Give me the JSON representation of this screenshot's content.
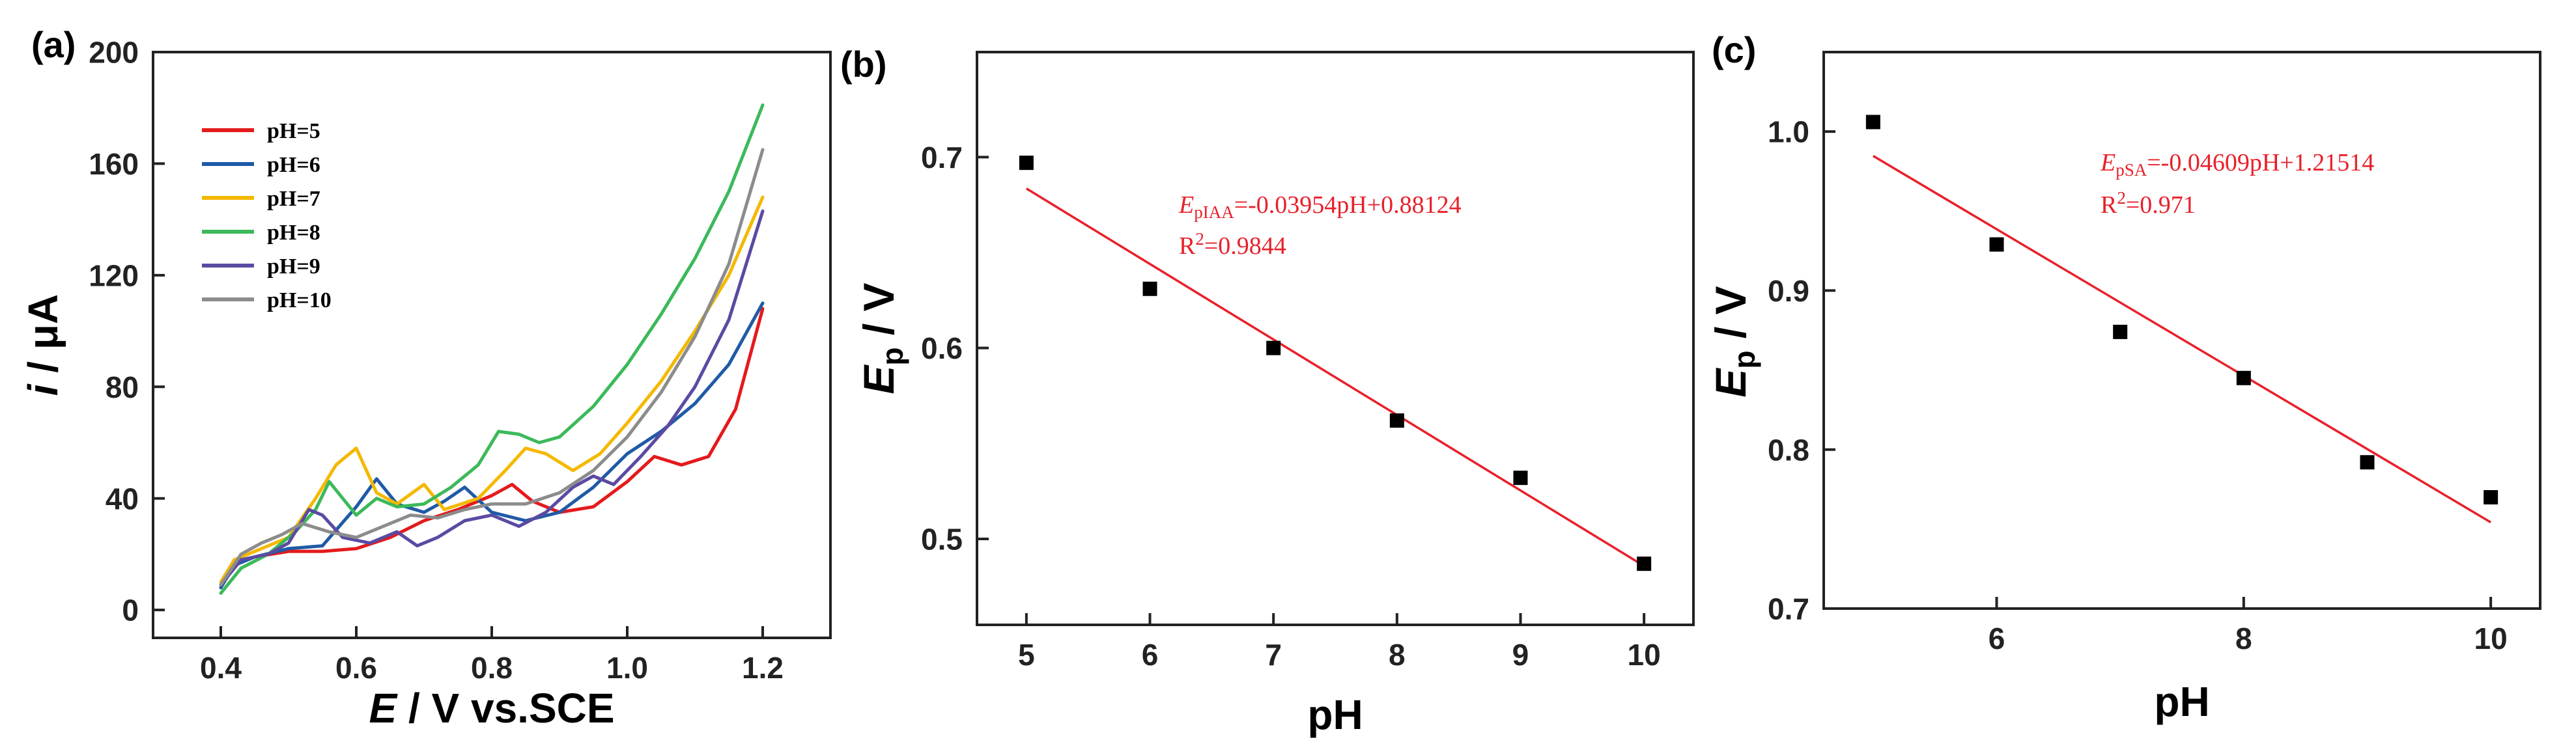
{
  "chart_data": [
    {
      "panel_label": "(a)",
      "type": "line",
      "xlabel_italic": "E",
      "xlabel_rest": " / V vs.SCE",
      "ylabel_italic": "i",
      "ylabel_rest": " / μA",
      "xlim": [
        0.3,
        1.3
      ],
      "ylim": [
        -10,
        200
      ],
      "xticks": [
        0.4,
        0.6,
        0.8,
        1.0,
        1.2
      ],
      "xtick_labels": [
        "0.4",
        "0.6",
        "0.8",
        "1.0",
        "1.2"
      ],
      "yticks": [
        0,
        40,
        80,
        120,
        160,
        200
      ],
      "ytick_labels": [
        "0",
        "40",
        "80",
        "120",
        "160",
        "200"
      ],
      "legend_position": "top-left",
      "series": [
        {
          "name": "pH=5",
          "color": "#e41a1c",
          "points": [
            [
              0.4,
              8
            ],
            [
              0.42,
              17
            ],
            [
              0.45,
              19
            ],
            [
              0.5,
              21
            ],
            [
              0.55,
              21
            ],
            [
              0.6,
              22
            ],
            [
              0.65,
              26
            ],
            [
              0.7,
              32
            ],
            [
              0.75,
              36
            ],
            [
              0.8,
              41
            ],
            [
              0.83,
              45
            ],
            [
              0.86,
              39
            ],
            [
              0.9,
              35
            ],
            [
              0.95,
              37
            ],
            [
              1.0,
              46
            ],
            [
              1.04,
              55
            ],
            [
              1.08,
              52
            ],
            [
              1.12,
              55
            ],
            [
              1.16,
              72
            ],
            [
              1.2,
              108
            ]
          ]
        },
        {
          "name": "pH=6",
          "color": "#1f5aa6",
          "points": [
            [
              0.4,
              8
            ],
            [
              0.42,
              16
            ],
            [
              0.45,
              19
            ],
            [
              0.5,
              22
            ],
            [
              0.55,
              23
            ],
            [
              0.6,
              37
            ],
            [
              0.63,
              47
            ],
            [
              0.66,
              38
            ],
            [
              0.7,
              35
            ],
            [
              0.73,
              39
            ],
            [
              0.76,
              44
            ],
            [
              0.8,
              35
            ],
            [
              0.85,
              32
            ],
            [
              0.9,
              35
            ],
            [
              0.95,
              44
            ],
            [
              1.0,
              56
            ],
            [
              1.05,
              64
            ],
            [
              1.1,
              74
            ],
            [
              1.15,
              88
            ],
            [
              1.2,
              110
            ]
          ]
        },
        {
          "name": "pH=7",
          "color": "#f5b800",
          "points": [
            [
              0.4,
              10
            ],
            [
              0.42,
              18
            ],
            [
              0.46,
              22
            ],
            [
              0.5,
              26
            ],
            [
              0.54,
              40
            ],
            [
              0.57,
              52
            ],
            [
              0.6,
              58
            ],
            [
              0.63,
              42
            ],
            [
              0.66,
              38
            ],
            [
              0.7,
              45
            ],
            [
              0.73,
              36
            ],
            [
              0.78,
              40
            ],
            [
              0.82,
              50
            ],
            [
              0.85,
              58
            ],
            [
              0.88,
              56
            ],
            [
              0.92,
              50
            ],
            [
              0.96,
              56
            ],
            [
              1.0,
              67
            ],
            [
              1.05,
              82
            ],
            [
              1.1,
              100
            ],
            [
              1.15,
              120
            ],
            [
              1.2,
              148
            ]
          ]
        },
        {
          "name": "pH=8",
          "color": "#3cb95a",
          "points": [
            [
              0.4,
              6
            ],
            [
              0.43,
              15
            ],
            [
              0.47,
              20
            ],
            [
              0.51,
              28
            ],
            [
              0.54,
              36
            ],
            [
              0.56,
              46
            ],
            [
              0.58,
              40
            ],
            [
              0.6,
              34
            ],
            [
              0.63,
              40
            ],
            [
              0.66,
              37
            ],
            [
              0.7,
              38
            ],
            [
              0.74,
              44
            ],
            [
              0.78,
              52
            ],
            [
              0.81,
              64
            ],
            [
              0.84,
              63
            ],
            [
              0.87,
              60
            ],
            [
              0.9,
              62
            ],
            [
              0.95,
              73
            ],
            [
              1.0,
              88
            ],
            [
              1.05,
              106
            ],
            [
              1.1,
              126
            ],
            [
              1.15,
              150
            ],
            [
              1.2,
              181
            ]
          ]
        },
        {
          "name": "pH=9",
          "color": "#5b4aa2",
          "points": [
            [
              0.4,
              9
            ],
            [
              0.43,
              18
            ],
            [
              0.47,
              20
            ],
            [
              0.5,
              24
            ],
            [
              0.53,
              36
            ],
            [
              0.55,
              34
            ],
            [
              0.58,
              26
            ],
            [
              0.62,
              24
            ],
            [
              0.66,
              28
            ],
            [
              0.69,
              23
            ],
            [
              0.72,
              26
            ],
            [
              0.76,
              32
            ],
            [
              0.8,
              34
            ],
            [
              0.84,
              30
            ],
            [
              0.88,
              35
            ],
            [
              0.92,
              44
            ],
            [
              0.95,
              48
            ],
            [
              0.98,
              45
            ],
            [
              1.02,
              55
            ],
            [
              1.06,
              66
            ],
            [
              1.1,
              80
            ],
            [
              1.15,
              104
            ],
            [
              1.2,
              143
            ]
          ]
        },
        {
          "name": "pH=10",
          "color": "#8c8c8c",
          "points": [
            [
              0.4,
              9
            ],
            [
              0.43,
              20
            ],
            [
              0.46,
              24
            ],
            [
              0.49,
              27
            ],
            [
              0.52,
              31
            ],
            [
              0.56,
              28
            ],
            [
              0.6,
              26
            ],
            [
              0.64,
              30
            ],
            [
              0.68,
              34
            ],
            [
              0.72,
              33
            ],
            [
              0.76,
              36
            ],
            [
              0.8,
              38
            ],
            [
              0.85,
              38
            ],
            [
              0.9,
              42
            ],
            [
              0.95,
              50
            ],
            [
              1.0,
              62
            ],
            [
              1.05,
              78
            ],
            [
              1.1,
              98
            ],
            [
              1.15,
              124
            ],
            [
              1.2,
              165
            ]
          ]
        }
      ]
    },
    {
      "panel_label": "(b)",
      "type": "scatter",
      "xlabel": "pH",
      "ylabel_italic": "E",
      "ylabel_sub": "p",
      "ylabel_rest": " / V",
      "xlim": [
        4.6,
        10.4
      ],
      "ylim": [
        0.455,
        0.755
      ],
      "xticks": [
        5,
        6,
        7,
        8,
        9,
        10
      ],
      "xtick_labels": [
        "5",
        "6",
        "7",
        "8",
        "9",
        "10"
      ],
      "yticks": [
        0.5,
        0.6,
        0.7
      ],
      "ytick_labels": [
        "0.5",
        "0.6",
        "0.7"
      ],
      "points": [
        [
          5,
          0.697
        ],
        [
          6,
          0.631
        ],
        [
          7,
          0.6
        ],
        [
          8,
          0.562
        ],
        [
          9,
          0.532
        ],
        [
          10,
          0.487
        ]
      ],
      "fit": {
        "slope": -0.03954,
        "intercept": 0.88124,
        "x_range": [
          5,
          10
        ],
        "color": "#e8202a"
      },
      "equation": {
        "italic": "E",
        "sub": "pIAA",
        "rest": "=-0.03954pH+0.88124"
      },
      "r2": {
        "base": "R",
        "sup": "2",
        "rest": "=0.9844"
      }
    },
    {
      "panel_label": "(c)",
      "type": "scatter",
      "xlabel": "pH",
      "ylabel_italic": "E",
      "ylabel_sub": "p",
      "ylabel_rest": " / V",
      "xlim": [
        4.6,
        10.4
      ],
      "ylim": [
        0.7,
        1.05
      ],
      "xticks": [
        6,
        8,
        10
      ],
      "xtick_labels": [
        "6",
        "8",
        "10"
      ],
      "yticks": [
        0.7,
        0.8,
        0.9,
        1.0
      ],
      "ytick_labels": [
        "0.7",
        "0.8",
        "0.9",
        "1.0"
      ],
      "points": [
        [
          5,
          1.006
        ],
        [
          6,
          0.929
        ],
        [
          7,
          0.874
        ],
        [
          8,
          0.845
        ],
        [
          9,
          0.792
        ],
        [
          10,
          0.77
        ]
      ],
      "fit": {
        "slope": -0.04609,
        "intercept": 1.21514,
        "x_range": [
          5,
          10
        ],
        "color": "#e8202a"
      },
      "equation": {
        "italic": "E",
        "sub": "pSA",
        "rest": "=-0.04609pH+1.21514"
      },
      "r2": {
        "base": "R",
        "sup": "2",
        "rest": "=0.971"
      }
    }
  ]
}
